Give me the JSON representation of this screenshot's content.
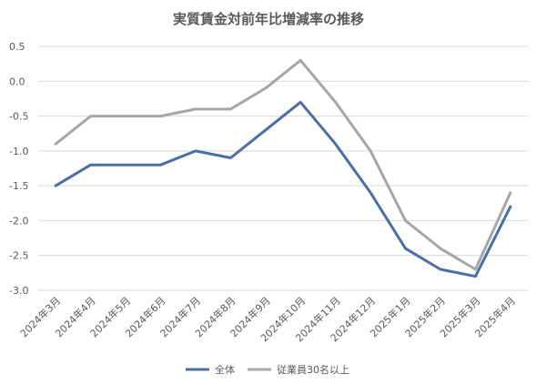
{
  "chart_data": {
    "type": "line",
    "title": "実質賃金対前年比増減率の推移",
    "xlabel": "",
    "ylabel": "",
    "categories": [
      "2024年3月",
      "2024年4月",
      "2024年5月",
      "2024年6月",
      "2024年7月",
      "2024年8月",
      "2024年9月",
      "2024年10月",
      "2024年11月",
      "2024年12月",
      "2025年1月",
      "2025年2月",
      "2025年3月",
      "2025年4月"
    ],
    "ylim": [
      -3.0,
      0.5
    ],
    "yticks": [
      "0.5",
      "0.0",
      "-0.5",
      "-1.0",
      "-1.5",
      "-2.0",
      "-2.5",
      "-3.0"
    ],
    "grid": true,
    "legend_position": "bottom",
    "series": [
      {
        "name": "全体",
        "color": "#4a6fa5",
        "values": [
          -1.5,
          -1.2,
          -1.2,
          -1.2,
          -1.0,
          -1.1,
          -0.7,
          -0.3,
          -0.9,
          -1.6,
          -2.4,
          -2.7,
          -2.8,
          -1.8
        ]
      },
      {
        "name": "従業員30名以上",
        "color": "#a6a6a6",
        "values": [
          -0.9,
          -0.5,
          -0.5,
          -0.5,
          -0.4,
          -0.4,
          -0.1,
          0.3,
          -0.3,
          -1.0,
          -2.0,
          -2.4,
          -2.7,
          -1.6
        ]
      }
    ]
  }
}
